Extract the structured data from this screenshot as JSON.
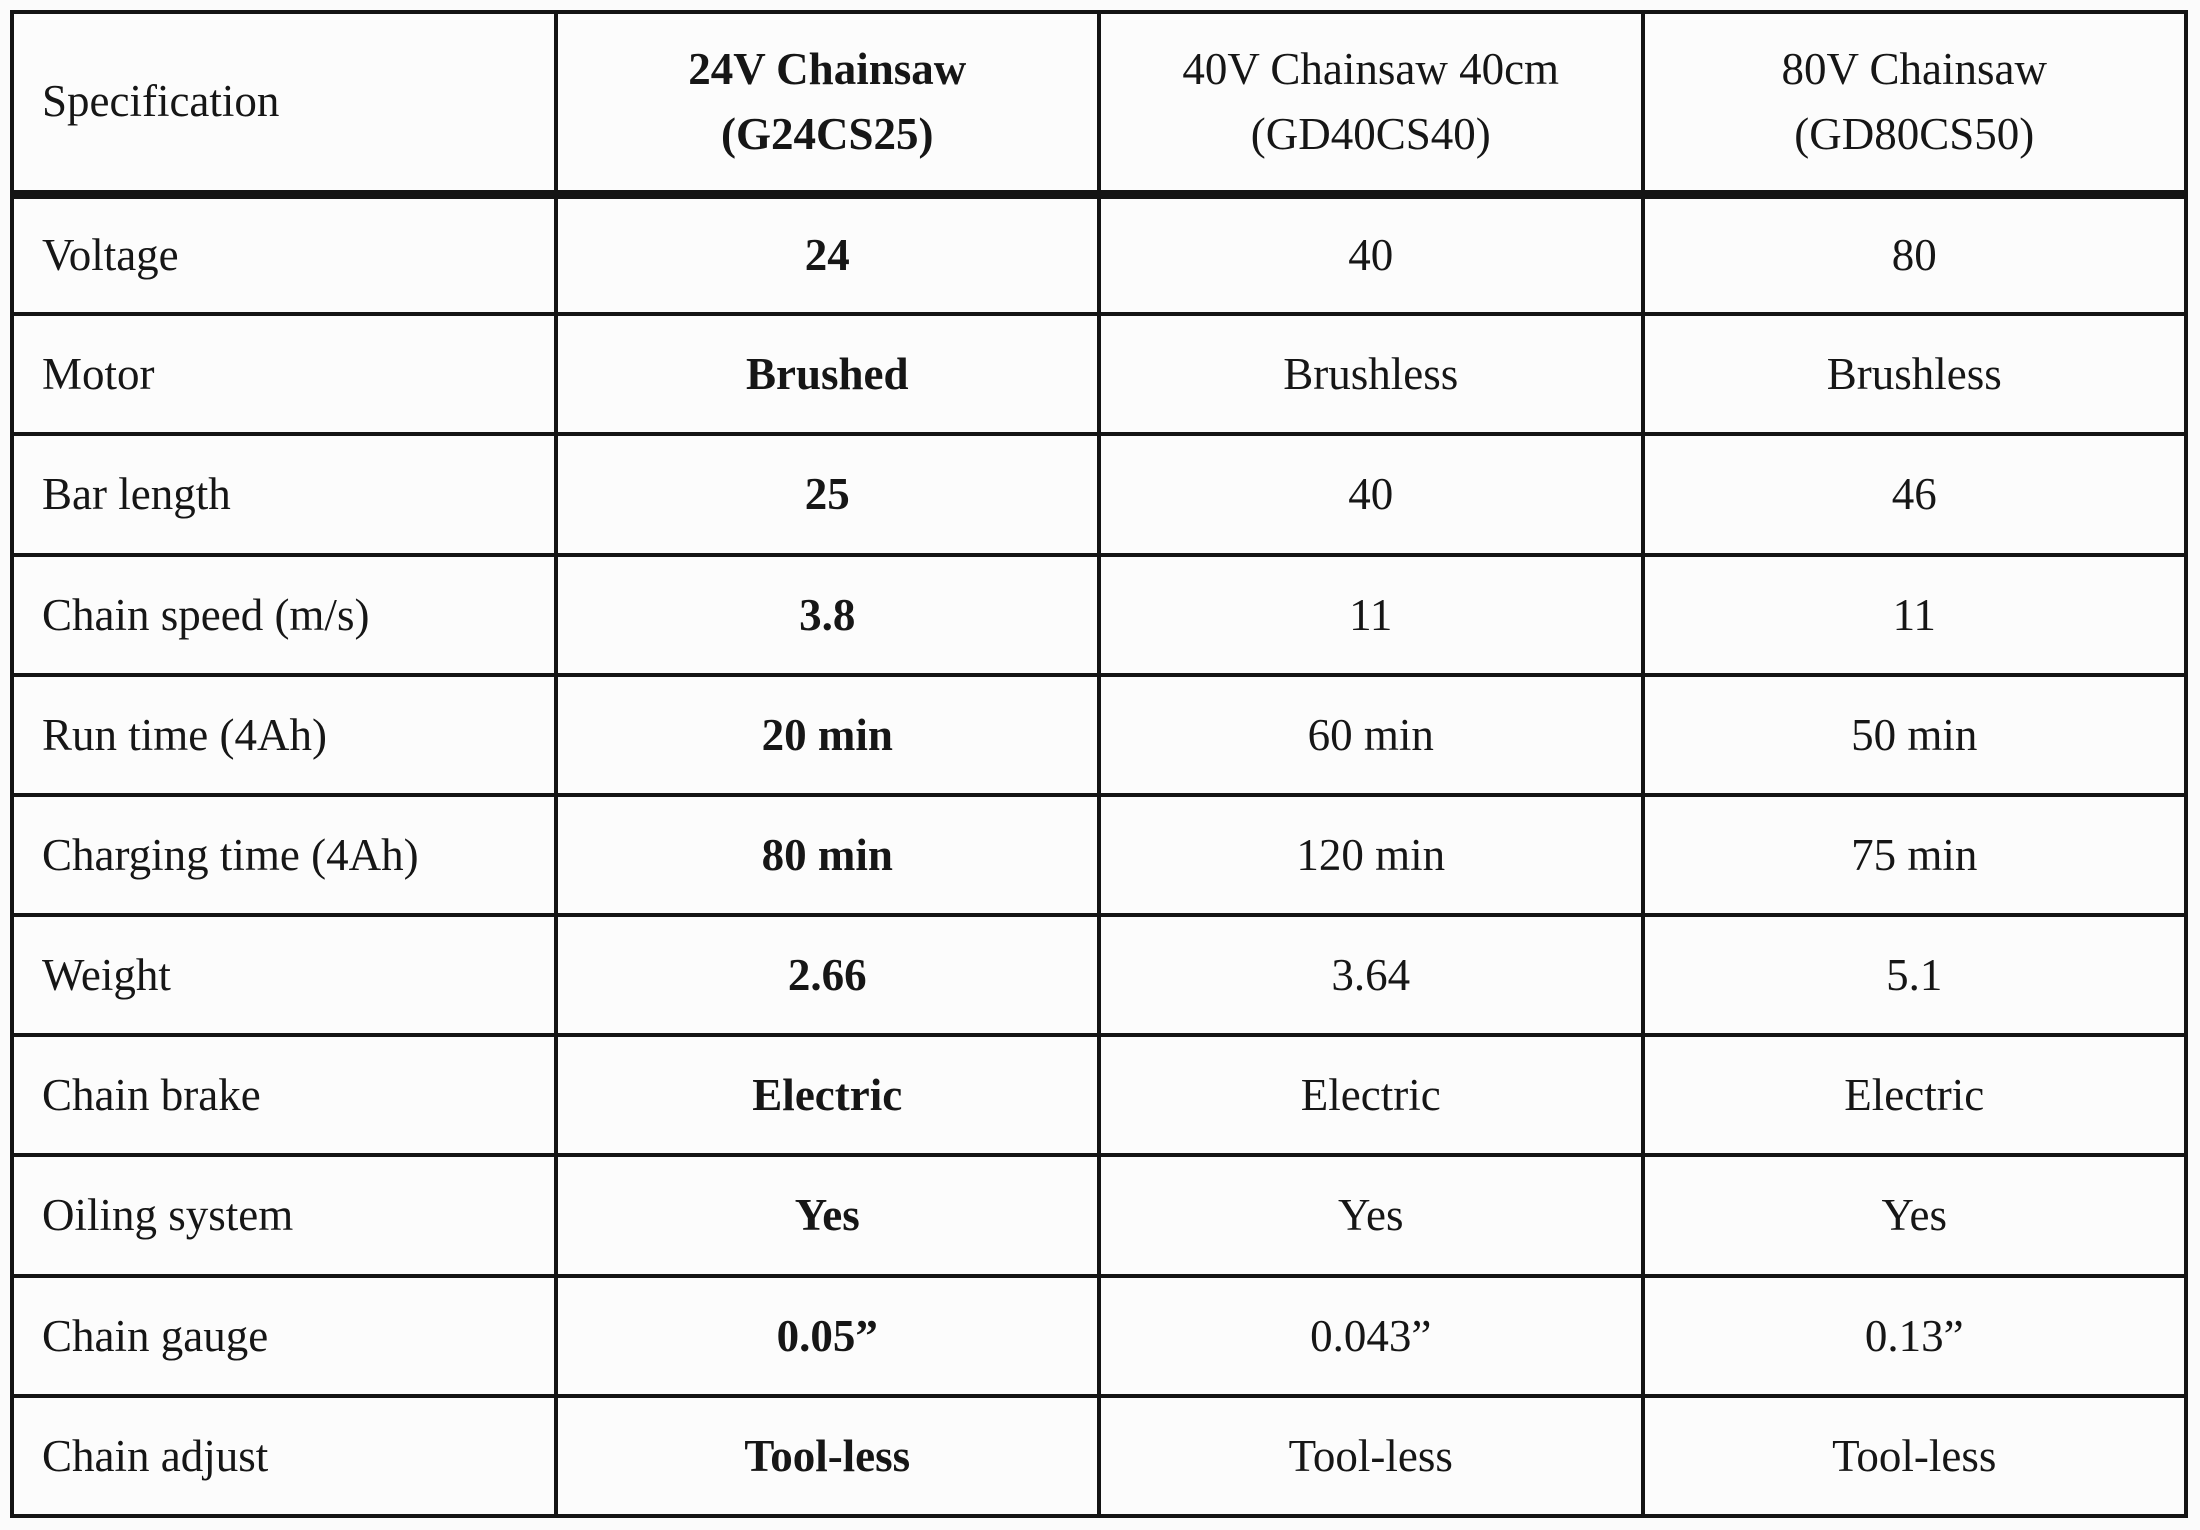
{
  "table": {
    "columns": [
      {
        "label": "Specification",
        "model": ""
      },
      {
        "label": "24V Chainsaw",
        "model": "(G24CS25)"
      },
      {
        "label": "40V Chainsaw 40cm",
        "model": "(GD40CS40)"
      },
      {
        "label": "80V Chainsaw",
        "model": "(GD80CS50)"
      }
    ],
    "rows": [
      {
        "spec": "Voltage",
        "values": [
          "24",
          "40",
          "80"
        ]
      },
      {
        "spec": "Motor",
        "values": [
          "Brushed",
          "Brushless",
          "Brushless"
        ]
      },
      {
        "spec": "Bar length",
        "values": [
          "25",
          "40",
          "46"
        ]
      },
      {
        "spec": "Chain speed (m/s)",
        "values": [
          "3.8",
          "11",
          "11"
        ]
      },
      {
        "spec": "Run time (4Ah)",
        "values": [
          "20 min",
          "60 min",
          "50 min"
        ]
      },
      {
        "spec": "Charging time (4Ah)",
        "values": [
          "80 min",
          "120 min",
          "75 min"
        ]
      },
      {
        "spec": "Weight",
        "values": [
          "2.66",
          "3.64",
          "5.1"
        ]
      },
      {
        "spec": "Chain brake",
        "values": [
          "Electric",
          "Electric",
          "Electric"
        ]
      },
      {
        "spec": "Oiling system",
        "values": [
          "Yes",
          "Yes",
          "Yes"
        ]
      },
      {
        "spec": "Chain gauge",
        "values": [
          "0.05”",
          "0.043”",
          "0.13”"
        ]
      },
      {
        "spec": "Chain adjust",
        "values": [
          "Tool-less",
          "Tool-less",
          "Tool-less"
        ]
      }
    ]
  }
}
